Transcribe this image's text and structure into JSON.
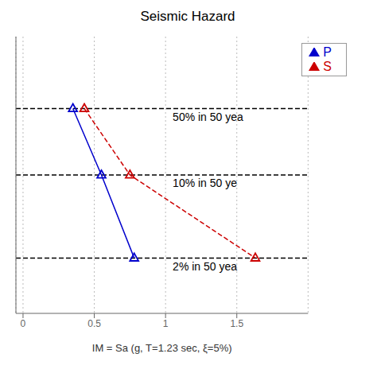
{
  "chart_data": {
    "type": "line",
    "title": "Seismic Hazard",
    "xlabel": "IM = Sa (g, T=1.23 sec, ξ=5%)",
    "series": [
      {
        "name": "P",
        "color": "#0000cc",
        "x": [
          0.35,
          0.55,
          0.78
        ],
        "values": [
          0.74,
          0.5,
          0.2
        ],
        "marker": "triangle",
        "line_style": "solid"
      },
      {
        "name": "S",
        "color": "#cc0000",
        "x": [
          0.43,
          0.75,
          1.63
        ],
        "values": [
          0.74,
          0.5,
          0.2
        ],
        "marker": "triangle",
        "line_style": "dashed"
      }
    ],
    "annotations": [
      {
        "text": "50% in 50 yea",
        "y": 0.74,
        "x": 1.05
      },
      {
        "text": "10% in 50 ye",
        "y": 0.5,
        "x": 1.05
      },
      {
        "text": "2% in 50 yea",
        "y": 0.2,
        "x": 1.05
      }
    ],
    "xlim": [
      -0.05,
      2.0
    ],
    "ylim": [
      0.0,
      1.0
    ],
    "xticks": [
      0.0,
      0.5,
      1.0,
      1.5
    ],
    "yticks": [],
    "tick_labels": "x",
    "grid": true,
    "legend": "upper right"
  }
}
